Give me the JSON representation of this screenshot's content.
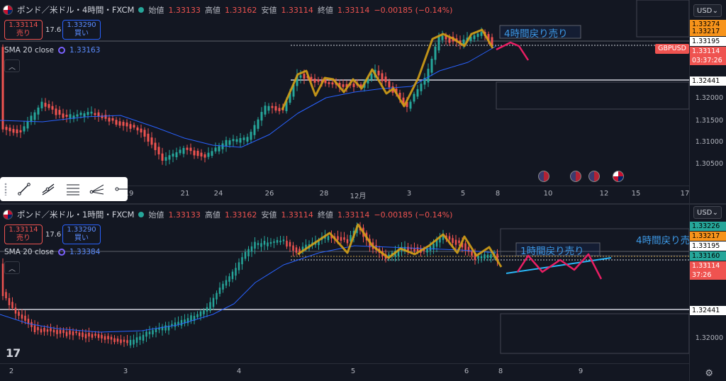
{
  "top": {
    "symbol": "ポンド／米ドル・4時間・FXCM",
    "ohlc": [
      {
        "label": "始値",
        "value": "1.33133"
      },
      {
        "label": "高値",
        "value": "1.33162"
      },
      {
        "label": "安値",
        "value": "1.33114"
      },
      {
        "label": "終値",
        "value": "1.33114"
      }
    ],
    "change": "−0.00185 (−0.14%)",
    "sell_price": "1.33114",
    "sell_label": "売り",
    "spread": "17.6",
    "buy_price": "1.33290",
    "buy_label": "買い",
    "sma_label": "SMA 20 close",
    "sma_value": "1.33163",
    "annotation": "4時間戻り売り",
    "currency": "USD",
    "ticker_tag": "GBPUSD",
    "countdown": "03:37:26",
    "price_labels": [
      "1.32000",
      "1.31500",
      "1.31000",
      "1.30500"
    ],
    "price_tags": {
      "p1": "1.33274",
      "p2": "1.33217",
      "p3": "1.33195",
      "last": "1.33114",
      "level": "1.32441"
    },
    "time_labels": [
      "19",
      "21",
      "24",
      "26",
      "28",
      "12月",
      "3",
      "5",
      "8",
      "10",
      "12",
      "15",
      "17"
    ]
  },
  "bottom": {
    "symbol": "ポンド／米ドル・1時間・FXCM",
    "ohlc": [
      {
        "label": "始値",
        "value": "1.33133"
      },
      {
        "label": "高値",
        "value": "1.33162"
      },
      {
        "label": "安値",
        "value": "1.33114"
      },
      {
        "label": "終値",
        "value": "1.33114"
      }
    ],
    "change": "−0.00185 (−0.14%)",
    "sell_price": "1.33114",
    "sell_label": "売り",
    "spread": "17.6",
    "buy_price": "1.33290",
    "buy_label": "買い",
    "sma_label": "SMA 20 close",
    "sma_value": "1.33384",
    "annotation_main": "4時間戻り売",
    "annotation": "1時間戻り売り",
    "currency": "USD",
    "countdown": "37:26",
    "price_labels": [
      "1.32000"
    ],
    "price_tags": {
      "p1": "1.33226",
      "p2": "1.33217",
      "p3": "1.33195",
      "p4": "1.33160",
      "last": "1.33114",
      "level": "1.32441"
    },
    "time_labels": [
      "2",
      "3",
      "4",
      "5",
      "6",
      "8",
      "9"
    ]
  },
  "colors": {
    "up": "#26a69a",
    "down": "#ef5350",
    "sma": "#2962ff",
    "zigzag": "#d4a017",
    "projection": "#e91e63",
    "trend": "#29b6f6"
  },
  "icons": [
    "flag-icon",
    "live-dot-icon",
    "chevron-up-icon",
    "line-tool-icon",
    "channel-tool-icon",
    "fib-tool-icon",
    "pitchfork-tool-icon",
    "ray-tool-icon",
    "us-flag-icon",
    "uk-flag-icon",
    "tradingview-logo-icon",
    "settings-icon"
  ]
}
